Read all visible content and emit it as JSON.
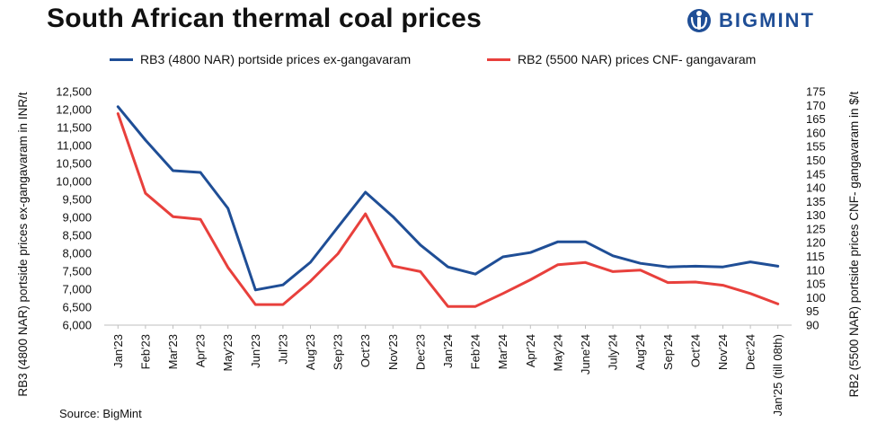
{
  "header": {
    "title": "South African thermal coal prices",
    "brand": "BIGMINT",
    "brand_color": "#1f4e96"
  },
  "footer": {
    "source": "Source: BigMint"
  },
  "chart_data": {
    "type": "line",
    "title": "South African thermal coal prices",
    "categories": [
      "Jan'23",
      "Feb'23",
      "Mar'23",
      "Apr'23",
      "May'23",
      "Jun'23",
      "Jul'23",
      "Aug'23",
      "Sep'23",
      "Oct'23",
      "Nov'23",
      "Dec'23",
      "Jan'24",
      "Feb'24",
      "Mar'24",
      "Apr'24",
      "May'24",
      "June'24",
      "July'24",
      "Aug'24",
      "Sep'24",
      "Oct'24",
      "Nov'24",
      "Dec'24",
      "Jan'25 (till 08th)"
    ],
    "ylabel": "RB3 (4800 NAR) portside prices ex-gangavaram  in INR/t",
    "y2label": "RB2 (5500 NAR) portside prices CNF- gangavaram  in $/t",
    "ylim": [
      6000,
      12500
    ],
    "yticks": [
      6000,
      6500,
      7000,
      7500,
      8000,
      8500,
      9000,
      9500,
      10000,
      10500,
      11000,
      11500,
      12000,
      12500
    ],
    "y2lim": [
      90,
      175
    ],
    "y2ticks": [
      90,
      95,
      100,
      105,
      110,
      115,
      120,
      125,
      130,
      135,
      140,
      145,
      150,
      155,
      160,
      165,
      170,
      175
    ],
    "grid": false,
    "legend_position": "top",
    "series": [
      {
        "name": "RB3 (4800 NAR) portside prices ex-gangavaram",
        "axis": "left",
        "color": "#1f4e96",
        "values": [
          12080,
          11150,
          10300,
          10250,
          9250,
          6980,
          7120,
          7750,
          8730,
          9700,
          9020,
          8230,
          7620,
          7420,
          7900,
          8020,
          8320,
          8320,
          7930,
          7720,
          7620,
          7640,
          7620,
          7760,
          7640
        ]
      },
      {
        "name": "RB2 (5500 NAR) prices CNF- gangavaram",
        "axis": "right",
        "color": "#e8403c",
        "values": [
          167,
          138,
          129.5,
          128.5,
          111,
          97.5,
          97.5,
          106,
          116,
          130.5,
          111.5,
          109.5,
          96.8,
          96.8,
          101.5,
          106.5,
          112,
          112.8,
          109.5,
          110,
          105.5,
          105.7,
          104.5,
          101.5,
          97.7
        ]
      }
    ]
  }
}
